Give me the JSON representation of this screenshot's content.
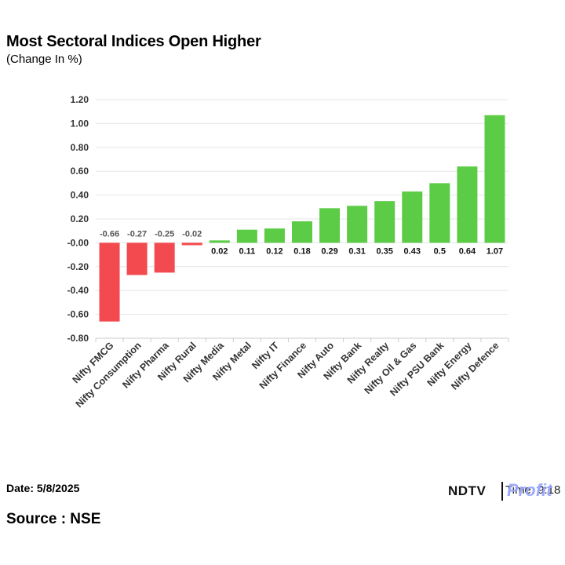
{
  "header": {
    "title": "Most Sectoral Indices Open Higher",
    "subtitle": "(Change In %)"
  },
  "footer": {
    "date": "Date: 5/8/2025",
    "source": "Source : NSE",
    "logo_ndtv": "NDTV",
    "logo_time": "Time: 9:18",
    "logo_profit": "Profit"
  },
  "colors": {
    "positive": "#5ccc46",
    "negative": "#f24a4f",
    "grid": "#e6e6e6",
    "axis": "#cccccc"
  },
  "chart_data": {
    "type": "bar",
    "title": "Most Sectoral Indices Open Higher",
    "subtitle": "(Change In %)",
    "categories": [
      "Nifty FMCG",
      "Nifty Consumption",
      "Nifty Pharma",
      "Nifty Rural",
      "Nifty Media",
      "Nifty Metal",
      "Nifty IT",
      "Nifty Finance",
      "Nifty Auto",
      "Nifty Bank",
      "Nifty Realty",
      "Nifty Oil & Gas",
      "Nifty PSU Bank",
      "Nifty Energy",
      "Nifty Defence"
    ],
    "values": [
      -0.66,
      -0.27,
      -0.25,
      -0.02,
      0.02,
      0.11,
      0.12,
      0.18,
      0.29,
      0.31,
      0.35,
      0.43,
      0.5,
      0.64,
      1.07
    ],
    "value_labels": [
      "-0.66",
      "-0.27",
      "-0.25",
      "-0.02",
      "0.02",
      "0.11",
      "0.12",
      "0.18",
      "0.29",
      "0.31",
      "0.35",
      "0.43",
      "0.5",
      "0.64",
      "1.07"
    ],
    "ylim": [
      -0.8,
      1.2
    ],
    "yticks": [
      1.2,
      1.0,
      0.8,
      0.6,
      0.4,
      0.2,
      0.0,
      -0.2,
      -0.4,
      -0.6,
      -0.8
    ],
    "ytick_labels": [
      "1.20",
      "1.00",
      "0.80",
      "0.60",
      "0.40",
      "0.20",
      "-0.00",
      "-0.20",
      "-0.40",
      "-0.60",
      "-0.80"
    ],
    "xlabel": "",
    "ylabel": "",
    "grid": true,
    "legend": "none"
  }
}
